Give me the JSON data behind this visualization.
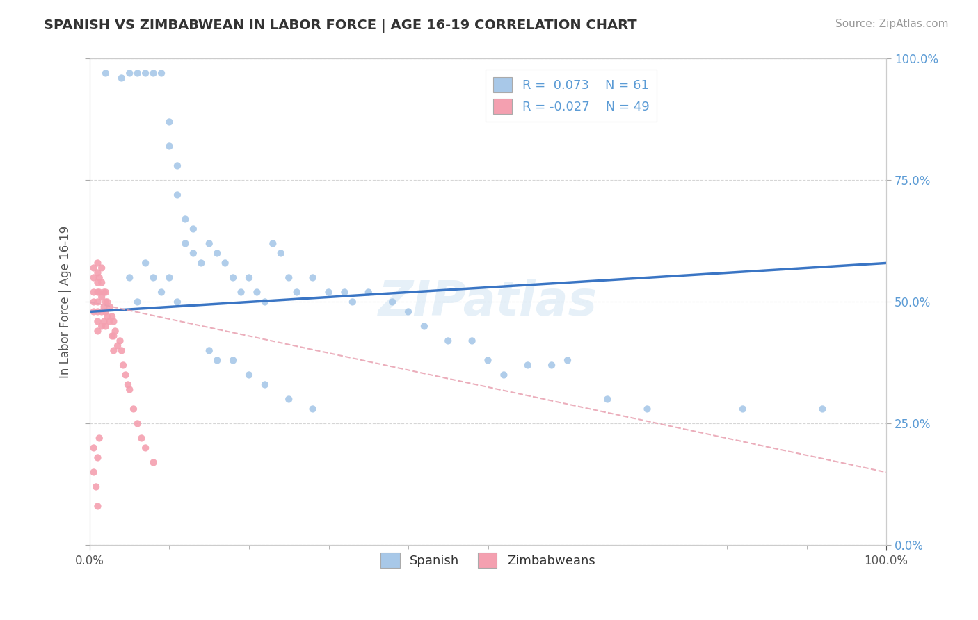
{
  "title": "SPANISH VS ZIMBABWEAN IN LABOR FORCE | AGE 16-19 CORRELATION CHART",
  "source": "Source: ZipAtlas.com",
  "ylabel": "In Labor Force | Age 16-19",
  "xlim": [
    0.0,
    1.0
  ],
  "ylim": [
    0.0,
    1.0
  ],
  "yticks": [
    0.0,
    0.25,
    0.5,
    0.75,
    1.0
  ],
  "yticklabels_right": [
    "0.0%",
    "25.0%",
    "50.0%",
    "75.0%",
    "100.0%"
  ],
  "xticklabels_bottom": [
    "0.0%",
    "100.0%"
  ],
  "xticks_bottom": [
    0.0,
    1.0
  ],
  "spanish_color": "#a8c8e8",
  "zimbabwean_color": "#f4a0b0",
  "spanish_R": 0.073,
  "spanish_N": 61,
  "zimbabwean_R": -0.027,
  "zimbabwean_N": 49,
  "trend_spanish_color": "#3a75c4",
  "trend_zimbabwean_color": "#e8a0b0",
  "watermark": "ZIPatlas",
  "spanish_x": [
    0.02,
    0.04,
    0.05,
    0.06,
    0.07,
    0.08,
    0.09,
    0.1,
    0.1,
    0.11,
    0.11,
    0.12,
    0.12,
    0.13,
    0.13,
    0.14,
    0.15,
    0.16,
    0.17,
    0.18,
    0.19,
    0.2,
    0.21,
    0.22,
    0.23,
    0.24,
    0.25,
    0.26,
    0.28,
    0.3,
    0.32,
    0.33,
    0.35,
    0.38,
    0.4,
    0.42,
    0.45,
    0.48,
    0.5,
    0.52,
    0.55,
    0.58,
    0.6,
    0.65,
    0.7,
    0.82,
    0.92,
    0.05,
    0.06,
    0.07,
    0.08,
    0.09,
    0.1,
    0.11,
    0.15,
    0.16,
    0.18,
    0.2,
    0.22,
    0.25,
    0.28
  ],
  "spanish_y": [
    0.97,
    0.96,
    0.97,
    0.97,
    0.97,
    0.97,
    0.97,
    0.87,
    0.82,
    0.78,
    0.72,
    0.67,
    0.62,
    0.65,
    0.6,
    0.58,
    0.62,
    0.6,
    0.58,
    0.55,
    0.52,
    0.55,
    0.52,
    0.5,
    0.62,
    0.6,
    0.55,
    0.52,
    0.55,
    0.52,
    0.52,
    0.5,
    0.52,
    0.5,
    0.48,
    0.45,
    0.42,
    0.42,
    0.38,
    0.35,
    0.37,
    0.37,
    0.38,
    0.3,
    0.28,
    0.28,
    0.28,
    0.55,
    0.5,
    0.58,
    0.55,
    0.52,
    0.55,
    0.5,
    0.4,
    0.38,
    0.38,
    0.35,
    0.33,
    0.3,
    0.28
  ],
  "zimbabwean_x": [
    0.005,
    0.005,
    0.005,
    0.005,
    0.005,
    0.01,
    0.01,
    0.01,
    0.01,
    0.01,
    0.01,
    0.01,
    0.01,
    0.012,
    0.012,
    0.015,
    0.015,
    0.015,
    0.015,
    0.015,
    0.018,
    0.018,
    0.018,
    0.02,
    0.02,
    0.02,
    0.02,
    0.022,
    0.022,
    0.025,
    0.025,
    0.028,
    0.028,
    0.03,
    0.03,
    0.03,
    0.032,
    0.035,
    0.038,
    0.04,
    0.042,
    0.045,
    0.048,
    0.05,
    0.055,
    0.06,
    0.065,
    0.07,
    0.08
  ],
  "zimbabwean_y": [
    0.57,
    0.55,
    0.52,
    0.5,
    0.48,
    0.58,
    0.56,
    0.54,
    0.52,
    0.5,
    0.48,
    0.46,
    0.44,
    0.55,
    0.52,
    0.57,
    0.54,
    0.51,
    0.48,
    0.45,
    0.52,
    0.49,
    0.46,
    0.52,
    0.5,
    0.48,
    0.45,
    0.5,
    0.47,
    0.49,
    0.46,
    0.47,
    0.43,
    0.46,
    0.43,
    0.4,
    0.44,
    0.41,
    0.42,
    0.4,
    0.37,
    0.35,
    0.33,
    0.32,
    0.28,
    0.25,
    0.22,
    0.2,
    0.17
  ],
  "zim_low_x": [
    0.005,
    0.005,
    0.008,
    0.01,
    0.01,
    0.012
  ],
  "zim_low_y": [
    0.2,
    0.15,
    0.12,
    0.08,
    0.18,
    0.22
  ],
  "trend_sp_x0": 0.0,
  "trend_sp_y0": 0.48,
  "trend_sp_x1": 1.0,
  "trend_sp_y1": 0.58,
  "trend_zw_x0": 0.0,
  "trend_zw_y0": 0.5,
  "trend_zw_x1": 1.0,
  "trend_zw_y1": 0.15
}
